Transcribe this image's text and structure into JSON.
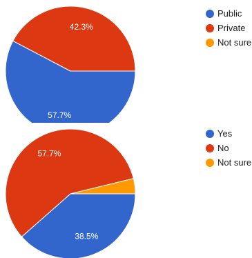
{
  "chart_data": [
    {
      "type": "pie",
      "categories": [
        "Public",
        "Private",
        "Not sure"
      ],
      "values": [
        57.7,
        42.3,
        0
      ],
      "data_labels": [
        "57.7%",
        "42.3%",
        ""
      ],
      "colors": [
        "#3366cc",
        "#dc3912",
        "#ff9900"
      ],
      "legend_position": "right"
    },
    {
      "type": "pie",
      "categories": [
        "Yes",
        "No",
        "Not sure"
      ],
      "values": [
        38.5,
        57.7,
        3.8
      ],
      "data_labels": [
        "38.5%",
        "57.7%",
        ""
      ],
      "colors": [
        "#3366cc",
        "#dc3912",
        "#ff9900"
      ],
      "legend_position": "right"
    }
  ]
}
